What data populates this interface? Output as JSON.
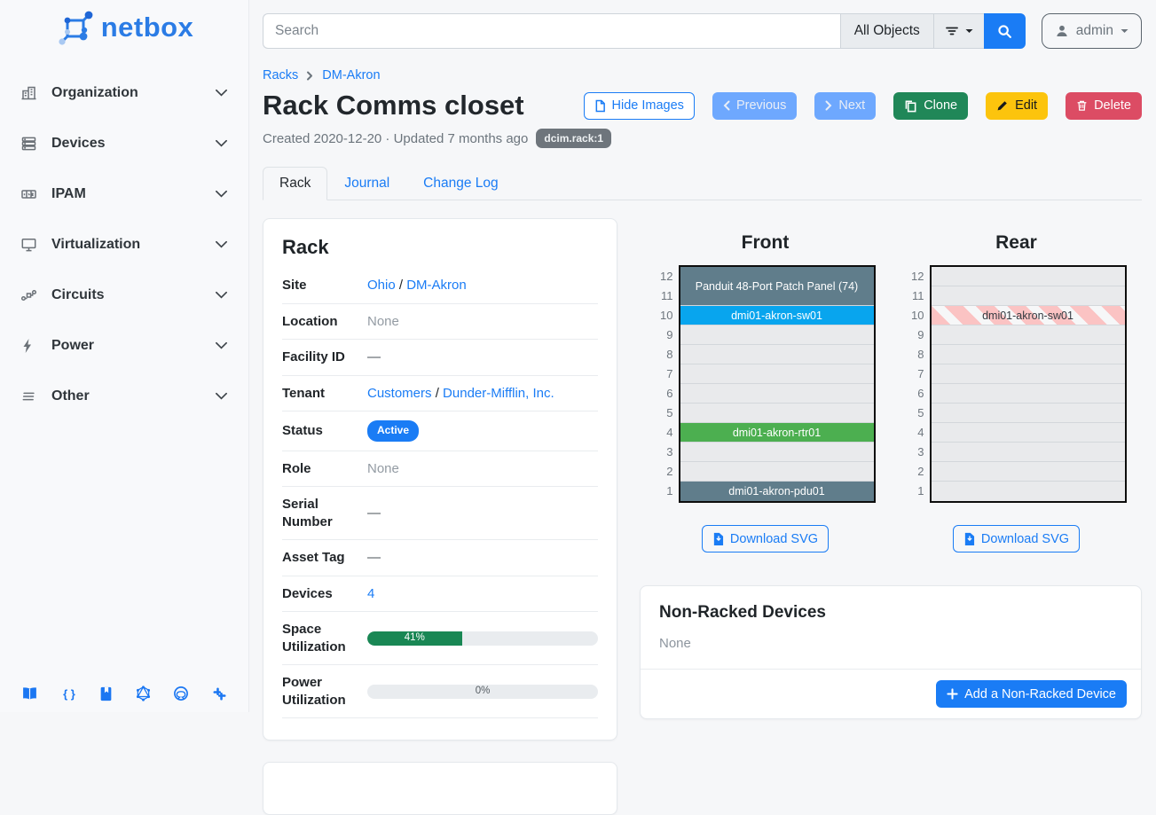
{
  "sidebar": {
    "logo_text": "netbox",
    "items": [
      {
        "label": "Organization",
        "icon": "building-icon"
      },
      {
        "label": "Devices",
        "icon": "server-icon"
      },
      {
        "label": "IPAM",
        "icon": "counter-icon"
      },
      {
        "label": "Virtualization",
        "icon": "monitor-icon"
      },
      {
        "label": "Circuits",
        "icon": "connection-icon"
      },
      {
        "label": "Power",
        "icon": "bolt-icon"
      },
      {
        "label": "Other",
        "icon": "menu-lines-icon"
      }
    ],
    "footer_icons": [
      "book-icon",
      "braces-icon",
      "journal-icon",
      "graphql-icon",
      "github-icon",
      "slack-icon"
    ]
  },
  "topbar": {
    "search_placeholder": "Search",
    "scope_label": "All Objects",
    "user_label": "admin"
  },
  "breadcrumb": {
    "items": [
      "Racks",
      "DM-Akron"
    ]
  },
  "page": {
    "title": "Rack Comms closet",
    "meta": "Created 2020-12-20 · Updated 7 months ago",
    "badge": "dcim.rack:1"
  },
  "actions": {
    "hide_images": "Hide Images",
    "previous": "Previous",
    "next": "Next",
    "clone": "Clone",
    "edit": "Edit",
    "delete": "Delete"
  },
  "tabs": [
    {
      "label": "Rack",
      "active": true
    },
    {
      "label": "Journal",
      "active": false
    },
    {
      "label": "Change Log",
      "active": false
    }
  ],
  "rack_panel": {
    "title": "Rack",
    "rows": [
      {
        "label": "Site",
        "type": "links",
        "links": [
          "Ohio",
          "DM-Akron"
        ],
        "separator": " / "
      },
      {
        "label": "Location",
        "type": "muted",
        "value": "None"
      },
      {
        "label": "Facility ID",
        "type": "dash",
        "value": "—"
      },
      {
        "label": "Tenant",
        "type": "links",
        "links": [
          "Customers",
          "Dunder-Mifflin, Inc."
        ],
        "separator": " / "
      },
      {
        "label": "Status",
        "type": "badge",
        "value": "Active"
      },
      {
        "label": "Role",
        "type": "muted",
        "value": "None"
      },
      {
        "label": "Serial Number",
        "type": "dash",
        "value": "—"
      },
      {
        "label": "Asset Tag",
        "type": "dash",
        "value": "—"
      },
      {
        "label": "Devices",
        "type": "link",
        "value": "4"
      },
      {
        "label": "Space Utilization",
        "type": "progress",
        "percent": 41,
        "text": "41%"
      },
      {
        "label": "Power Utilization",
        "type": "progress",
        "percent": 0,
        "text": "0%"
      }
    ]
  },
  "rack_views": {
    "download_label": "Download SVG",
    "unit_labels": [
      "12",
      "11",
      "10",
      "9",
      "8",
      "7",
      "6",
      "5",
      "4",
      "3",
      "2",
      "1"
    ],
    "front": {
      "title": "Front",
      "slots": [
        {
          "units": 2,
          "label": "Panduit 48-Port Patch Panel (74)",
          "style": "slate"
        },
        {
          "units": 1,
          "label": "dmi01-akron-sw01",
          "style": "blue"
        },
        {
          "units": 1,
          "style": "empty"
        },
        {
          "units": 1,
          "style": "empty"
        },
        {
          "units": 1,
          "style": "empty"
        },
        {
          "units": 1,
          "style": "empty"
        },
        {
          "units": 1,
          "style": "empty"
        },
        {
          "units": 1,
          "label": "dmi01-akron-rtr01",
          "style": "green"
        },
        {
          "units": 1,
          "style": "empty"
        },
        {
          "units": 1,
          "style": "empty"
        },
        {
          "units": 1,
          "label": "dmi01-akron-pdu01",
          "style": "slate"
        }
      ]
    },
    "rear": {
      "title": "Rear",
      "slots": [
        {
          "units": 1,
          "style": "empty"
        },
        {
          "units": 1,
          "style": "empty"
        },
        {
          "units": 1,
          "label": "dmi01-akron-sw01",
          "style": "striped"
        },
        {
          "units": 1,
          "style": "empty"
        },
        {
          "units": 1,
          "style": "empty"
        },
        {
          "units": 1,
          "style": "empty"
        },
        {
          "units": 1,
          "style": "empty"
        },
        {
          "units": 1,
          "style": "empty"
        },
        {
          "units": 1,
          "style": "empty"
        },
        {
          "units": 1,
          "style": "empty"
        },
        {
          "units": 1,
          "style": "empty"
        },
        {
          "units": 1,
          "style": "empty"
        }
      ]
    }
  },
  "non_racked": {
    "title": "Non-Racked Devices",
    "empty_text": "None",
    "add_label": "Add a Non-Racked Device"
  },
  "colors": {
    "primary": "#1a7cf5",
    "progress_fill": "#198754",
    "device_slate": "#607d8b",
    "device_blue": "#08a5ee",
    "device_green": "#4caf50",
    "rear_stripe_pink": "#fbc3c3"
  }
}
